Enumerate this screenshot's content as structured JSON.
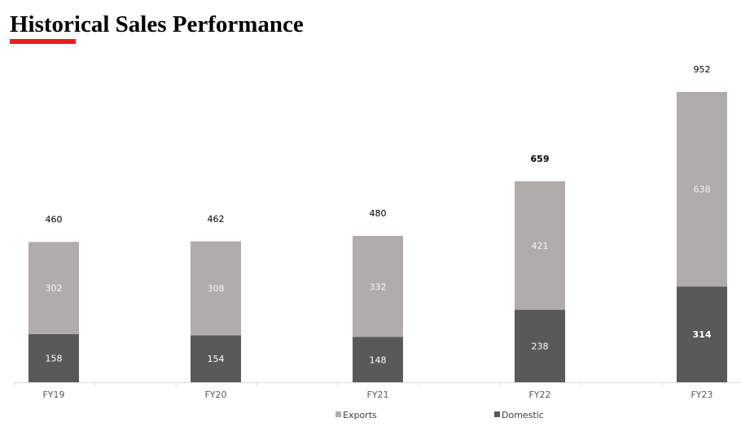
{
  "header": {
    "title": "Historical Sales Performance",
    "accent_color": "#ed1c24"
  },
  "chart_data": {
    "type": "bar",
    "stacked": true,
    "categories": [
      "FY19",
      "FY20",
      "FY21",
      "FY22",
      "FY23"
    ],
    "series": [
      {
        "name": "Domestic",
        "values": [
          158,
          154,
          148,
          238,
          314
        ],
        "color": "#595959"
      },
      {
        "name": "Exports",
        "values": [
          302,
          308,
          332,
          421,
          638
        ],
        "color": "#b0acab"
      }
    ],
    "totals": [
      460,
      462,
      480,
      659,
      952
    ],
    "ylim": [
      0,
      952
    ],
    "grid": false,
    "legend": "bottom"
  }
}
